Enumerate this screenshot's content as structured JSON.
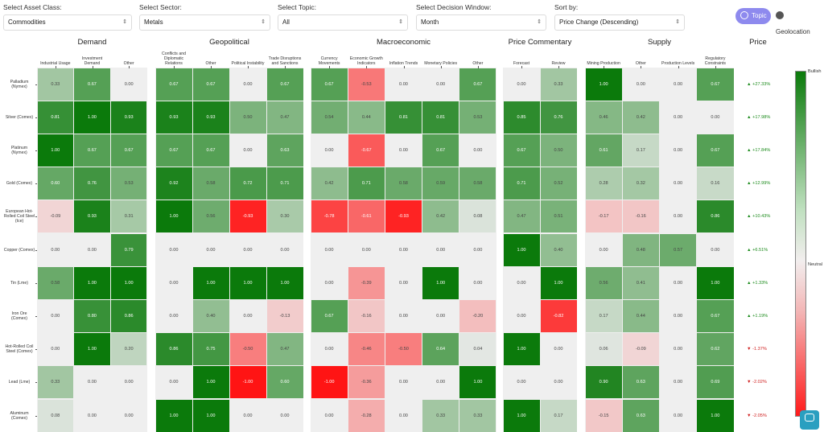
{
  "filters": {
    "asset_class": {
      "label": "Select Asset Class:",
      "value": "Commodities"
    },
    "sector": {
      "label": "Select Sector:",
      "value": "Metals"
    },
    "topic": {
      "label": "Select Topic:",
      "value": "All"
    },
    "window": {
      "label": "Select Decision Window:",
      "value": "Month"
    },
    "sort": {
      "label": "Sort by:",
      "value": "Price Change (Descending)"
    }
  },
  "view_toggle": {
    "topic": "Topic",
    "geolocation": "Geolocation",
    "active": "topic"
  },
  "groups": [
    {
      "name": "Demand",
      "columns": [
        "Industrial Usage",
        "Investment Demand",
        "Other"
      ]
    },
    {
      "name": "Geopolitical",
      "columns": [
        "Conflicts and Diplomatic Relations",
        "Other",
        "Political Instability",
        "Trade Disruptions and Sanctions"
      ]
    },
    {
      "name": "Macroeconomic",
      "columns": [
        "Currency Movements",
        "Economic Growth Indicators",
        "Inflation Trends",
        "Monetary Policies",
        "Other"
      ]
    },
    {
      "name": "Price Commentary",
      "columns": [
        "Forecast",
        "Review"
      ]
    },
    {
      "name": "Supply",
      "columns": [
        "Mining Production",
        "Other",
        "Production Levels",
        "Regulatory Constraints"
      ]
    }
  ],
  "price_heading": "Price",
  "rows": [
    {
      "label": "Palladium (Nymex)",
      "values": [
        0.33,
        0.67,
        0.0,
        0.67,
        0.67,
        0.0,
        0.67,
        0.67,
        -0.53,
        0.0,
        0.0,
        0.67,
        0.0,
        0.33,
        1.0,
        0.0,
        0.0,
        0.67
      ],
      "price": "▲ +27.33%",
      "dir": "up"
    },
    {
      "label": "Silver (Comex)",
      "values": [
        0.81,
        1.0,
        0.93,
        0.93,
        0.93,
        0.5,
        0.47,
        0.54,
        0.44,
        0.81,
        0.81,
        0.53,
        0.85,
        0.76,
        0.46,
        0.42,
        0.0,
        0.0
      ],
      "price": "▲ +17.98%",
      "dir": "up"
    },
    {
      "label": "Platinum (Nymex)",
      "values": [
        1.0,
        0.67,
        0.67,
        0.67,
        0.67,
        0.0,
        0.63,
        0.0,
        -0.67,
        0.0,
        0.67,
        0.0,
        0.67,
        0.5,
        0.61,
        0.17,
        0.0,
        0.67
      ],
      "price": "▲ +17.84%",
      "dir": "up"
    },
    {
      "label": "Gold (Comex)",
      "values": [
        0.6,
        0.76,
        0.53,
        0.92,
        0.58,
        0.72,
        0.71,
        0.42,
        0.71,
        0.58,
        0.59,
        0.58,
        0.71,
        0.52,
        0.28,
        0.32,
        0.0,
        0.16
      ],
      "price": "▲ +12.99%",
      "dir": "up"
    },
    {
      "label": "European Hot-Rolled Coil Steel (Ice)",
      "values": [
        -0.09,
        0.93,
        0.31,
        1.0,
        0.56,
        -0.93,
        0.3,
        -0.78,
        -0.61,
        -0.93,
        0.42,
        0.08,
        0.47,
        0.51,
        -0.17,
        -0.16,
        0.0,
        0.86
      ],
      "price": "▲ +10.43%",
      "dir": "up"
    },
    {
      "label": "Copper (Comex)",
      "values": [
        0.0,
        0.0,
        0.79,
        0.0,
        0.0,
        0.0,
        0.0,
        0.0,
        0.0,
        0.0,
        0.0,
        0.0,
        1.0,
        0.4,
        0.0,
        0.48,
        0.57,
        0.0
      ],
      "price": "▲ +6.51%",
      "dir": "up"
    },
    {
      "label": "Tin (Lme)",
      "values": [
        0.58,
        1.0,
        1.0,
        0.0,
        1.0,
        1.0,
        1.0,
        0.0,
        -0.39,
        0.0,
        1.0,
        0.0,
        0.0,
        1.0,
        0.56,
        0.41,
        0.0,
        1.0
      ],
      "price": "▲ +1.33%",
      "dir": "up"
    },
    {
      "label": "Iron Ore (Comex)",
      "values": [
        0.0,
        0.8,
        0.86,
        0.0,
        0.4,
        0.0,
        -0.13,
        0.67,
        -0.16,
        0.0,
        0.0,
        -0.2,
        0.0,
        -0.82,
        0.17,
        0.44,
        0.0,
        0.67
      ],
      "price": "▲ +1.19%",
      "dir": "up"
    },
    {
      "label": "Hot-Rolled Coil Steel (Comex)",
      "values": [
        0.0,
        1.0,
        0.2,
        0.86,
        0.75,
        -0.5,
        0.47,
        0.0,
        -0.46,
        -0.5,
        0.64,
        0.04,
        1.0,
        0.0,
        0.06,
        -0.09,
        0.0,
        0.62
      ],
      "price": "▼ -1.37%",
      "dir": "down"
    },
    {
      "label": "Lead (Lme)",
      "values": [
        0.33,
        0.0,
        0.0,
        0.0,
        1.0,
        -1.0,
        0.6,
        -1.0,
        -0.36,
        0.0,
        0.0,
        1.0,
        0.0,
        0.0,
        0.9,
        0.63,
        0.0,
        0.69
      ],
      "price": "▼ -2.02%",
      "dir": "down"
    },
    {
      "label": "Aluminum (Comex)",
      "values": [
        0.08,
        0.0,
        0.0,
        1.0,
        1.0,
        0.0,
        0.0,
        0.0,
        -0.28,
        0.0,
        0.33,
        0.33,
        1.0,
        0.17,
        -0.15,
        0.63,
        0.0,
        1.0
      ],
      "price": "▼ -2.05%",
      "dir": "down"
    }
  ],
  "legend": {
    "top": "Bullish",
    "mid": "Neutral",
    "colors": {
      "bullish": "#0b7a0b",
      "neutral": "#f0f0f0",
      "bearish": "#ff1a1a"
    }
  }
}
